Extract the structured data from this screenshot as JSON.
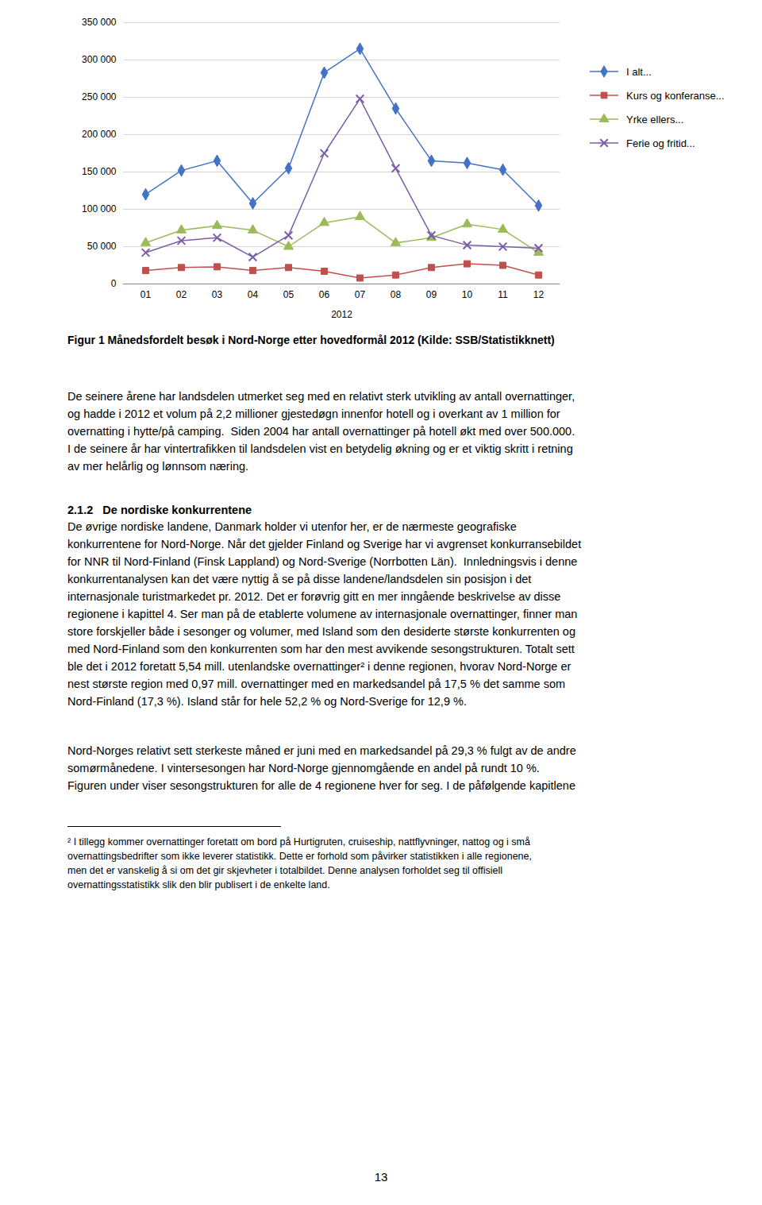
{
  "chart_data": {
    "type": "line",
    "categories": [
      "01",
      "02",
      "03",
      "04",
      "05",
      "06",
      "07",
      "08",
      "09",
      "10",
      "11",
      "12"
    ],
    "xlabel": "2012",
    "ylim": [
      0,
      350000
    ],
    "yticks": [
      0,
      {
        "value": 50000,
        "label": "50 000"
      },
      {
        "value": 100000,
        "label": "100 000"
      },
      {
        "value": 150000,
        "label": "150 000"
      },
      {
        "value": 200000,
        "label": "200 000"
      },
      {
        "value": 250000,
        "label": "250 000"
      },
      {
        "value": 300000,
        "label": "300 000"
      },
      {
        "value": 350000,
        "label": "350 000"
      }
    ],
    "grid": true,
    "legend": "right",
    "caption": "Figur 1 Månedsfordelt besøk i Nord-Norge etter hovedformål 2012 (Kilde: SSB/Statistikknett)",
    "series": [
      {
        "name": "I alt...",
        "color": "#4472C4",
        "marker": "diamond",
        "values": [
          120000,
          152000,
          165000,
          108000,
          155000,
          283000,
          315000,
          235000,
          165000,
          162000,
          153000,
          105000
        ]
      },
      {
        "name": "Kurs og konferanse...",
        "color": "#C0504D",
        "marker": "square",
        "values": [
          18000,
          22000,
          23000,
          18000,
          22000,
          17000,
          8000,
          12000,
          22000,
          27000,
          25000,
          12000
        ]
      },
      {
        "name": "Yrke ellers...",
        "color": "#9BBB59",
        "marker": "triangle",
        "values": [
          55000,
          72000,
          78000,
          72000,
          50000,
          82000,
          90000,
          55000,
          62000,
          80000,
          73000,
          42000
        ]
      },
      {
        "name": "Ferie og fritid...",
        "color": "#7B5EA7",
        "marker": "x",
        "values": [
          42000,
          58000,
          62000,
          36000,
          65000,
          175000,
          248000,
          155000,
          65000,
          52000,
          50000,
          48000
        ]
      }
    ]
  },
  "page": {
    "body_text_lines": [
      "De seinere årene har landsdelen utmerket seg med en relativt sterk utvikling av antall overnattinger,",
      "og hadde i 2012 et volum på 2,2 millioner gjestedøgn innenfor hotell og i overkant av 1 million for",
      "overnatting i hytte/på camping.  Siden 2004 har antall overnattinger på hotell økt med over 500.000.",
      "I de seinere år har vintertrafikken til landsdelen vist en betydelig økning og er et viktig skritt i retning",
      "av mer helårlig og lønnsom næring."
    ],
    "section_heading": "2.1.2   De nordiske konkurrentene",
    "section_text_lines": [
      "De øvrige nordiske landene, Danmark holder vi utenfor her, er de nærmeste geografiske",
      "konkurrentene for Nord-Norge. Når det gjelder Finland og Sverige har vi avgrenset konkurransebildet",
      "for NNR til Nord-Finland (Finsk Lappland) og Nord-Sverige (Norrbotten Län).  Innledningsvis i denne",
      "konkurrentanalysen kan det være nyttig å se på disse landene/landsdelen sin posisjon i det",
      "internasjonale turistmarkedet pr. 2012. Det er forøvrig gitt en mer inngående beskrivelse av disse",
      "regionene i kapittel 4. Ser man på de etablerte volumene av internasjonale overnattinger, finner man",
      "store forskjeller både i sesonger og volumer, med Island som den desiderte største konkurrenten og",
      "med Nord-Finland som den konkurrenten som har den mest avvikende sesongstrukturen. Totalt sett",
      "ble det i 2012 foretatt 5,54 mill. utenlandske overnattinger² i denne regionen, hvorav Nord-Norge er",
      "nest største region med 0,97 mill. overnattinger med en markedsandel på 17,5 % det samme som",
      "Nord-Finland (17,3 %). Island står for hele 52,2 % og Nord-Sverige for 12,9 %."
    ],
    "para2_text_lines": [
      "Nord-Norges relativt sett sterkeste måned er juni med en markedsandel på 29,3 % fulgt av de andre",
      "somørmånedene. I vintersesongen har Nord-Norge gjennomgående en andel på rundt 10 %.",
      "Figuren under viser sesongstrukturen for alle de 4 regionene hver for seg. I de påfølgende kapitlene"
    ],
    "footnote_lines": [
      "² I tillegg kommer overnattinger foretatt om bord på Hurtigruten, cruiseship, nattflyvninger, nattog og i små",
      "overnattingsbedrifter som ikke leverer statistikk. Dette er forhold som påvirker statistikken i alle regionene,",
      "men det er vanskelig å si om det gir skjevheter i totalbildet. Denne analysen forholdet seg til offisiell",
      "overnattingsstatistikk slik den blir publisert i de enkelte land."
    ],
    "page_number": "13"
  }
}
